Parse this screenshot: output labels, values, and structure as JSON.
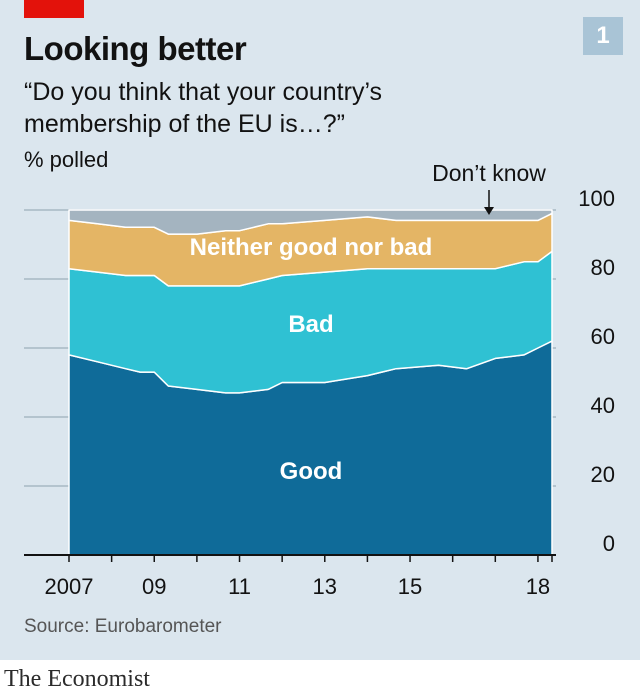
{
  "header": {
    "title": "Looking better",
    "subtitle": "“Do you think that your country’s membership of the EU is…?”",
    "ylabel": "% polled",
    "badge": "1"
  },
  "source": "Source: Eurobarometer",
  "footer": "The Economist",
  "colors": {
    "panel": "#dbe6ee",
    "good": "#0f6b99",
    "bad": "#2fc1d3",
    "neither": "#e4b565",
    "dont_know": "#a4b4c0",
    "accent": "#e3120b"
  },
  "chart_data": {
    "type": "area",
    "stacked": true,
    "x": [
      2007.0,
      2007.67,
      2008.33,
      2008.67,
      2009.0,
      2009.33,
      2010.0,
      2010.67,
      2011.0,
      2011.67,
      2012.0,
      2013.0,
      2014.0,
      2014.67,
      2015.67,
      2016.33,
      2017.0,
      2017.67,
      2018.0,
      2018.33
    ],
    "series": [
      {
        "name": "Good",
        "values": [
          58,
          56,
          54,
          53,
          53,
          49,
          48,
          47,
          47,
          48,
          50,
          50,
          52,
          54,
          55,
          54,
          57,
          58,
          60,
          62
        ]
      },
      {
        "name": "Bad",
        "values": [
          25,
          26,
          27,
          28,
          28,
          29,
          30,
          31,
          31,
          32,
          31,
          32,
          31,
          29,
          28,
          29,
          26,
          27,
          25,
          26
        ]
      },
      {
        "name": "Neither good nor bad",
        "values": [
          14,
          14,
          14,
          14,
          14,
          15,
          15,
          16,
          16,
          16,
          15,
          15,
          15,
          14,
          14,
          14,
          14,
          12,
          12,
          11
        ]
      },
      {
        "name": "Don’t know",
        "values": [
          3,
          4,
          5,
          5,
          5,
          7,
          7,
          6,
          6,
          4,
          4,
          3,
          2,
          3,
          3,
          3,
          3,
          3,
          3,
          1
        ]
      }
    ],
    "xticks": [
      2007,
      2009,
      2011,
      2013,
      2015,
      2018
    ],
    "xtick_labels": [
      "2007",
      "09",
      "11",
      "13",
      "15",
      "18"
    ],
    "yticks": [
      0,
      20,
      40,
      60,
      80,
      100
    ],
    "ytick_labels": [
      "0",
      "20",
      "40",
      "60",
      "80",
      "100"
    ],
    "ylim": [
      0,
      100
    ],
    "xlim": [
      2007,
      2018.33
    ],
    "annotations": [
      "Don’t know"
    ],
    "yaxis_side": "right",
    "grid": true
  }
}
